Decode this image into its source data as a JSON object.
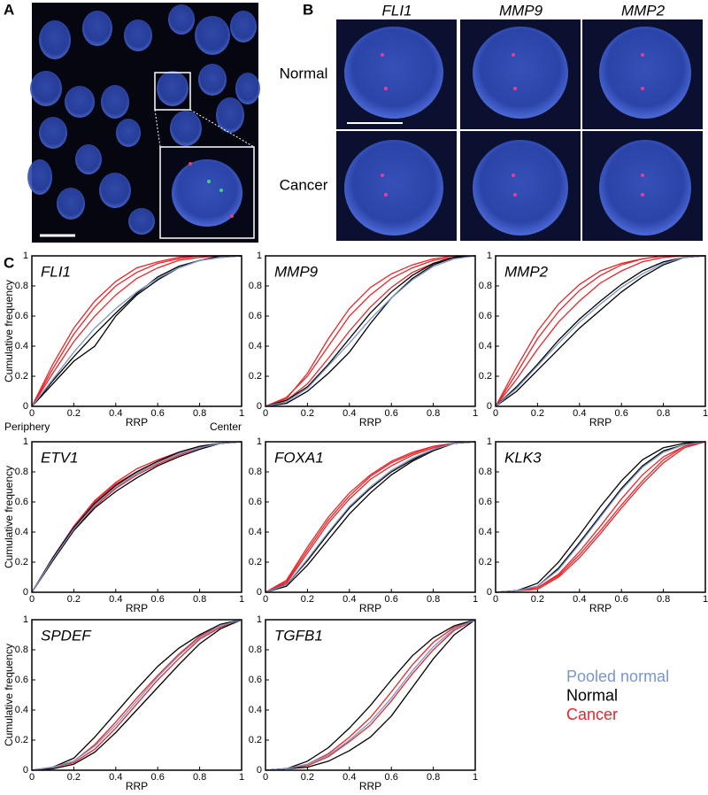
{
  "panel_labels": {
    "a": "A",
    "b": "B",
    "c": "C"
  },
  "image_columns": [
    "FLI1",
    "MMP9",
    "MMP2"
  ],
  "image_rows": [
    "Normal",
    "Cancer"
  ],
  "legend": [
    {
      "label": "Pooled normal",
      "color": "#7b96c9"
    },
    {
      "label": "Normal",
      "color": "#000000"
    },
    {
      "label": "Cancer",
      "color": "#e8262a"
    }
  ],
  "chart_data": [
    {
      "type": "line",
      "title": "FLI1",
      "xlabel": "RRP",
      "ylabel": "Cumulative frequency",
      "annotations": [
        "Periphery",
        "Center"
      ],
      "xlim": [
        0,
        1
      ],
      "ylim": [
        0,
        1
      ],
      "xticks": [
        0,
        0.2,
        0.4,
        0.6,
        0.8,
        1
      ],
      "yticks": [
        0,
        0.2,
        0.4,
        0.6,
        0.8,
        1
      ],
      "x": [
        0,
        0.1,
        0.2,
        0.3,
        0.4,
        0.5,
        0.6,
        0.7,
        0.8,
        0.9,
        1
      ],
      "series": [
        {
          "color": "#e8262a",
          "values": [
            0,
            0.25,
            0.48,
            0.66,
            0.8,
            0.89,
            0.95,
            0.98,
            1,
            1,
            1
          ]
        },
        {
          "color": "#e8262a",
          "values": [
            0,
            0.22,
            0.43,
            0.6,
            0.74,
            0.85,
            0.92,
            0.97,
            0.99,
            1,
            1
          ]
        },
        {
          "color": "#e8262a",
          "values": [
            0,
            0.28,
            0.52,
            0.7,
            0.83,
            0.92,
            0.96,
            0.99,
            1,
            1,
            1
          ]
        },
        {
          "color": "#000000",
          "values": [
            0,
            0.15,
            0.3,
            0.4,
            0.6,
            0.74,
            0.84,
            0.92,
            0.97,
            0.99,
            1
          ]
        },
        {
          "color": "#000000",
          "values": [
            0,
            0.17,
            0.33,
            0.48,
            0.62,
            0.75,
            0.86,
            0.93,
            0.97,
            1,
            1
          ]
        },
        {
          "color": "#7b96c9",
          "values": [
            0,
            0.18,
            0.36,
            0.52,
            0.65,
            0.76,
            0.85,
            0.92,
            0.97,
            0.99,
            1
          ]
        }
      ]
    },
    {
      "type": "line",
      "title": "MMP9",
      "xlabel": "RRP",
      "xlim": [
        0,
        1
      ],
      "ylim": [
        0,
        1
      ],
      "xticks": [
        0,
        0.2,
        0.4,
        0.6,
        0.8,
        1
      ],
      "yticks": [
        0,
        0.2,
        0.4,
        0.6,
        0.8,
        1
      ],
      "x": [
        0,
        0.1,
        0.2,
        0.3,
        0.4,
        0.5,
        0.6,
        0.7,
        0.8,
        0.9,
        1
      ],
      "series": [
        {
          "color": "#e8262a",
          "values": [
            0,
            0.06,
            0.2,
            0.4,
            0.6,
            0.74,
            0.85,
            0.92,
            0.97,
            0.99,
            1
          ]
        },
        {
          "color": "#e8262a",
          "values": [
            0,
            0.04,
            0.15,
            0.32,
            0.5,
            0.66,
            0.79,
            0.89,
            0.95,
            0.99,
            1
          ]
        },
        {
          "color": "#e8262a",
          "values": [
            0,
            0.05,
            0.22,
            0.45,
            0.65,
            0.79,
            0.88,
            0.94,
            0.98,
            1,
            1
          ]
        },
        {
          "color": "#000000",
          "values": [
            0,
            0.02,
            0.1,
            0.22,
            0.36,
            0.55,
            0.72,
            0.85,
            0.94,
            0.99,
            1
          ]
        },
        {
          "color": "#000000",
          "values": [
            0,
            0.04,
            0.13,
            0.28,
            0.45,
            0.62,
            0.76,
            0.87,
            0.95,
            0.99,
            1
          ]
        },
        {
          "color": "#7b96c9",
          "values": [
            0,
            0.03,
            0.12,
            0.27,
            0.42,
            0.58,
            0.72,
            0.84,
            0.93,
            0.98,
            1
          ]
        }
      ]
    },
    {
      "type": "line",
      "title": "MMP2",
      "xlabel": "RRP",
      "xlim": [
        0,
        1
      ],
      "ylim": [
        0,
        1
      ],
      "xticks": [
        0,
        0.2,
        0.4,
        0.6,
        0.8,
        1
      ],
      "yticks": [
        0,
        0.2,
        0.4,
        0.6,
        0.8,
        1
      ],
      "x": [
        0,
        0.1,
        0.2,
        0.3,
        0.4,
        0.5,
        0.6,
        0.7,
        0.8,
        0.9,
        1
      ],
      "series": [
        {
          "color": "#e8262a",
          "values": [
            0,
            0.22,
            0.45,
            0.63,
            0.77,
            0.87,
            0.94,
            0.98,
            1,
            1,
            1
          ]
        },
        {
          "color": "#e8262a",
          "values": [
            0,
            0.18,
            0.38,
            0.56,
            0.7,
            0.82,
            0.9,
            0.96,
            0.99,
            1,
            1
          ]
        },
        {
          "color": "#e8262a",
          "values": [
            0,
            0.26,
            0.5,
            0.68,
            0.81,
            0.9,
            0.95,
            0.98,
            1,
            1,
            1
          ]
        },
        {
          "color": "#000000",
          "values": [
            0,
            0.1,
            0.24,
            0.38,
            0.52,
            0.64,
            0.76,
            0.86,
            0.94,
            0.99,
            1
          ]
        },
        {
          "color": "#000000",
          "values": [
            0,
            0.13,
            0.28,
            0.44,
            0.58,
            0.7,
            0.81,
            0.9,
            0.96,
            0.99,
            1
          ]
        },
        {
          "color": "#7b96c9",
          "values": [
            0,
            0.12,
            0.27,
            0.42,
            0.56,
            0.68,
            0.79,
            0.88,
            0.95,
            0.99,
            1
          ]
        }
      ]
    },
    {
      "type": "line",
      "title": "ETV1",
      "xlabel": "RRP",
      "ylabel": "Cumulative frequency",
      "xlim": [
        0,
        1
      ],
      "ylim": [
        0,
        1
      ],
      "xticks": [
        0,
        0.2,
        0.4,
        0.6,
        0.8,
        1
      ],
      "yticks": [
        0,
        0.2,
        0.4,
        0.6,
        0.8,
        1
      ],
      "x": [
        0,
        0.1,
        0.2,
        0.3,
        0.4,
        0.5,
        0.6,
        0.7,
        0.8,
        0.9,
        1
      ],
      "series": [
        {
          "color": "#e8262a",
          "values": [
            0,
            0.23,
            0.44,
            0.61,
            0.73,
            0.82,
            0.88,
            0.93,
            0.97,
            0.99,
            1
          ]
        },
        {
          "color": "#e8262a",
          "values": [
            0,
            0.21,
            0.41,
            0.57,
            0.69,
            0.78,
            0.85,
            0.91,
            0.96,
            0.99,
            1
          ]
        },
        {
          "color": "#e8262a",
          "values": [
            0,
            0.22,
            0.43,
            0.6,
            0.72,
            0.8,
            0.87,
            0.92,
            0.96,
            0.99,
            1
          ]
        },
        {
          "color": "#000000",
          "values": [
            0,
            0.21,
            0.41,
            0.56,
            0.67,
            0.76,
            0.84,
            0.9,
            0.95,
            0.99,
            1
          ]
        },
        {
          "color": "#000000",
          "values": [
            0,
            0.23,
            0.43,
            0.59,
            0.71,
            0.8,
            0.87,
            0.93,
            0.97,
            0.99,
            1
          ]
        },
        {
          "color": "#7b96c9",
          "values": [
            0,
            0.22,
            0.42,
            0.58,
            0.7,
            0.79,
            0.86,
            0.92,
            0.96,
            0.99,
            1
          ]
        }
      ]
    },
    {
      "type": "line",
      "title": "FOXA1",
      "xlabel": "RRP",
      "xlim": [
        0,
        1
      ],
      "ylim": [
        0,
        1
      ],
      "xticks": [
        0,
        0.2,
        0.4,
        0.6,
        0.8,
        1
      ],
      "yticks": [
        0,
        0.2,
        0.4,
        0.6,
        0.8,
        1
      ],
      "x": [
        0,
        0.1,
        0.2,
        0.3,
        0.4,
        0.5,
        0.6,
        0.7,
        0.8,
        0.9,
        1
      ],
      "series": [
        {
          "color": "#e8262a",
          "values": [
            0,
            0.08,
            0.3,
            0.5,
            0.66,
            0.78,
            0.87,
            0.93,
            0.97,
            0.99,
            1
          ]
        },
        {
          "color": "#e8262a",
          "values": [
            0,
            0.06,
            0.26,
            0.46,
            0.62,
            0.75,
            0.84,
            0.91,
            0.96,
            0.99,
            1
          ]
        },
        {
          "color": "#e8262a",
          "values": [
            0,
            0.07,
            0.28,
            0.48,
            0.64,
            0.77,
            0.86,
            0.92,
            0.97,
            0.99,
            1
          ]
        },
        {
          "color": "#000000",
          "values": [
            0,
            0.04,
            0.18,
            0.35,
            0.52,
            0.66,
            0.78,
            0.87,
            0.94,
            0.99,
            1
          ]
        },
        {
          "color": "#000000",
          "values": [
            0,
            0.05,
            0.21,
            0.39,
            0.56,
            0.69,
            0.8,
            0.88,
            0.95,
            0.99,
            1
          ]
        },
        {
          "color": "#7b96c9",
          "values": [
            0,
            0.05,
            0.22,
            0.4,
            0.57,
            0.7,
            0.81,
            0.89,
            0.95,
            0.99,
            1
          ]
        }
      ]
    },
    {
      "type": "line",
      "title": "KLK3",
      "xlabel": "RRP",
      "xlim": [
        0,
        1
      ],
      "ylim": [
        0,
        1
      ],
      "xticks": [
        0,
        0.2,
        0.4,
        0.6,
        0.8,
        1
      ],
      "yticks": [
        0,
        0.2,
        0.4,
        0.6,
        0.8,
        1
      ],
      "x": [
        0,
        0.1,
        0.2,
        0.3,
        0.4,
        0.5,
        0.6,
        0.7,
        0.8,
        0.9,
        1
      ],
      "series": [
        {
          "color": "#e8262a",
          "values": [
            0,
            0.01,
            0.03,
            0.11,
            0.25,
            0.41,
            0.58,
            0.74,
            0.88,
            0.97,
            1
          ]
        },
        {
          "color": "#e8262a",
          "values": [
            0,
            0.01,
            0.03,
            0.12,
            0.27,
            0.44,
            0.62,
            0.78,
            0.9,
            0.97,
            1
          ]
        },
        {
          "color": "#e8262a",
          "values": [
            0,
            0.01,
            0.02,
            0.1,
            0.23,
            0.39,
            0.56,
            0.72,
            0.86,
            0.96,
            1
          ]
        },
        {
          "color": "#000000",
          "values": [
            0,
            0.01,
            0.06,
            0.2,
            0.38,
            0.57,
            0.74,
            0.88,
            0.96,
            0.99,
            1
          ]
        },
        {
          "color": "#000000",
          "values": [
            0,
            0.01,
            0.04,
            0.16,
            0.33,
            0.51,
            0.69,
            0.84,
            0.94,
            0.98,
            1
          ]
        },
        {
          "color": "#7b96c9",
          "values": [
            0,
            0.01,
            0.04,
            0.15,
            0.32,
            0.5,
            0.68,
            0.83,
            0.93,
            0.98,
            1
          ]
        }
      ]
    },
    {
      "type": "line",
      "title": "SPDEF",
      "xlabel": "RRP",
      "ylabel": "Cumulative frequency",
      "xlim": [
        0,
        1
      ],
      "ylim": [
        0,
        1
      ],
      "xticks": [
        0,
        0.2,
        0.4,
        0.6,
        0.8,
        1
      ],
      "yticks": [
        0,
        0.2,
        0.4,
        0.6,
        0.8,
        1
      ],
      "x": [
        0,
        0.1,
        0.2,
        0.3,
        0.4,
        0.5,
        0.6,
        0.7,
        0.8,
        0.9,
        1
      ],
      "series": [
        {
          "color": "#e8262a",
          "values": [
            0,
            0.02,
            0.06,
            0.17,
            0.32,
            0.48,
            0.63,
            0.77,
            0.89,
            0.96,
            1
          ]
        },
        {
          "color": "#e8262a",
          "values": [
            0,
            0.02,
            0.05,
            0.14,
            0.28,
            0.44,
            0.6,
            0.74,
            0.87,
            0.95,
            1
          ]
        },
        {
          "color": "#000000",
          "values": [
            0,
            0.02,
            0.08,
            0.22,
            0.38,
            0.54,
            0.69,
            0.81,
            0.9,
            0.97,
            1
          ]
        },
        {
          "color": "#000000",
          "values": [
            0,
            0.01,
            0.04,
            0.12,
            0.25,
            0.4,
            0.55,
            0.7,
            0.84,
            0.94,
            1
          ]
        },
        {
          "color": "#7b96c9",
          "values": [
            0,
            0.02,
            0.06,
            0.16,
            0.3,
            0.46,
            0.62,
            0.76,
            0.88,
            0.96,
            1
          ]
        }
      ]
    },
    {
      "type": "line",
      "title": "TGFB1",
      "xlabel": "RRP",
      "xlim": [
        0,
        1
      ],
      "ylim": [
        0,
        1
      ],
      "xticks": [
        0,
        0.2,
        0.4,
        0.6,
        0.8,
        1
      ],
      "yticks": [
        0,
        0.2,
        0.4,
        0.6,
        0.8,
        1
      ],
      "x": [
        0,
        0.1,
        0.2,
        0.3,
        0.4,
        0.5,
        0.6,
        0.7,
        0.8,
        0.9,
        1
      ],
      "series": [
        {
          "color": "#e8262a",
          "values": [
            0,
            0.01,
            0.04,
            0.11,
            0.22,
            0.35,
            0.52,
            0.7,
            0.85,
            0.95,
            1
          ]
        },
        {
          "color": "#e8262a",
          "values": [
            0,
            0.01,
            0.03,
            0.09,
            0.19,
            0.3,
            0.46,
            0.64,
            0.8,
            0.93,
            1
          ]
        },
        {
          "color": "#000000",
          "values": [
            0,
            0.01,
            0.06,
            0.15,
            0.28,
            0.43,
            0.6,
            0.76,
            0.88,
            0.96,
            1
          ]
        },
        {
          "color": "#000000",
          "values": [
            0,
            0.01,
            0.02,
            0.06,
            0.13,
            0.22,
            0.36,
            0.55,
            0.74,
            0.9,
            1
          ]
        },
        {
          "color": "#7b96c9",
          "values": [
            0,
            0.01,
            0.04,
            0.1,
            0.2,
            0.32,
            0.48,
            0.66,
            0.82,
            0.94,
            1
          ]
        }
      ]
    }
  ]
}
